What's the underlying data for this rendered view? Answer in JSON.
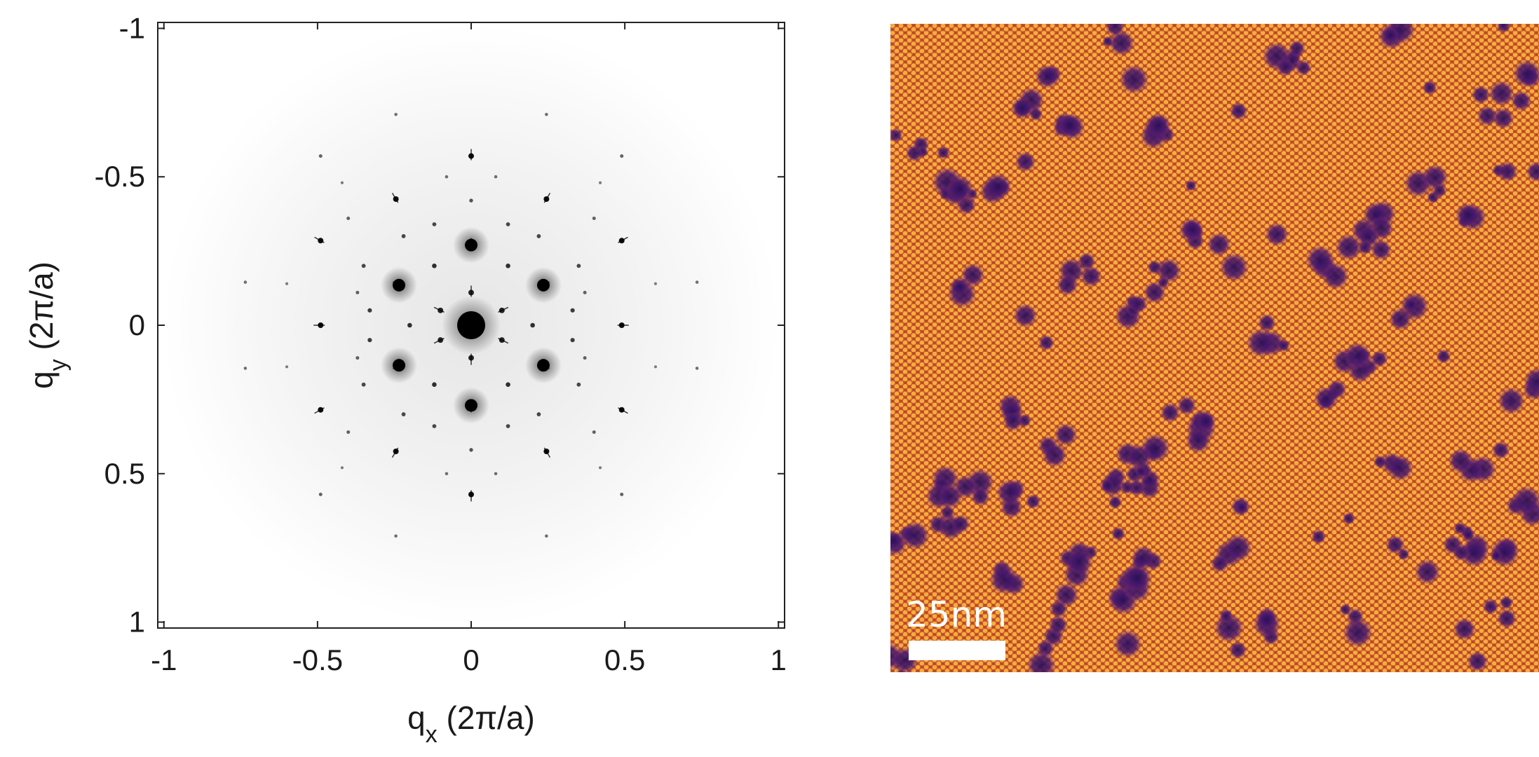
{
  "chart_data": [
    {
      "type": "scatter",
      "xlabel": "q_x (2π/a)",
      "ylabel": "q_y (2π/a)",
      "xlim": [
        -1.02,
        1.02
      ],
      "ylim": [
        -1.02,
        1.02
      ],
      "y_axis_inverted": true,
      "x_ticks": [
        -1,
        -0.5,
        0,
        0.5,
        1
      ],
      "x_tick_labels": [
        "-1",
        "-0.5",
        "0",
        "0.5",
        "1"
      ],
      "y_ticks": [
        -1,
        -0.5,
        0,
        0.5,
        1
      ],
      "y_tick_labels": [
        "-1",
        "-0.5",
        "0",
        "0.5",
        "1"
      ],
      "grid": false,
      "colormap": "grayscale (dark = high intensity)",
      "series": [
        {
          "points": [
            {
              "x": 0,
              "y": 0,
              "intensity": 1.0
            },
            {
              "x": 0,
              "y": -0.27,
              "intensity": 0.9
            },
            {
              "x": 0.235,
              "y": -0.135,
              "intensity": 0.9
            },
            {
              "x": 0.235,
              "y": 0.135,
              "intensity": 0.9
            },
            {
              "x": 0,
              "y": 0.27,
              "intensity": 0.9
            },
            {
              "x": -0.235,
              "y": 0.135,
              "intensity": 0.9
            },
            {
              "x": -0.235,
              "y": -0.135,
              "intensity": 0.9
            },
            {
              "x": 0,
              "y": -0.57,
              "intensity": 0.6
            },
            {
              "x": 0.49,
              "y": -0.285,
              "intensity": 0.6
            },
            {
              "x": 0.49,
              "y": 0.285,
              "intensity": 0.6
            },
            {
              "x": 0,
              "y": 0.57,
              "intensity": 0.6
            },
            {
              "x": -0.49,
              "y": 0.285,
              "intensity": 0.6
            },
            {
              "x": -0.49,
              "y": -0.285,
              "intensity": 0.6
            },
            {
              "x": 0.245,
              "y": -0.425,
              "intensity": 0.6
            },
            {
              "x": 0.49,
              "y": 0,
              "intensity": 0.6
            },
            {
              "x": 0.245,
              "y": 0.425,
              "intensity": 0.6
            },
            {
              "x": -0.245,
              "y": 0.425,
              "intensity": 0.6
            },
            {
              "x": -0.49,
              "y": 0,
              "intensity": 0.6
            },
            {
              "x": -0.245,
              "y": -0.425,
              "intensity": 0.6
            },
            {
              "x": -0.49,
              "y": -0.57,
              "intensity": 0.25
            },
            {
              "x": 0.49,
              "y": -0.57,
              "intensity": 0.25
            },
            {
              "x": -0.49,
              "y": 0.57,
              "intensity": 0.25
            },
            {
              "x": 0.49,
              "y": 0.57,
              "intensity": 0.25
            },
            {
              "x": -0.245,
              "y": -0.71,
              "intensity": 0.2
            },
            {
              "x": 0.245,
              "y": -0.71,
              "intensity": 0.2
            },
            {
              "x": -0.245,
              "y": 0.71,
              "intensity": 0.2
            },
            {
              "x": 0.245,
              "y": 0.71,
              "intensity": 0.2
            },
            {
              "x": -0.735,
              "y": -0.145,
              "intensity": 0.2
            },
            {
              "x": 0.735,
              "y": -0.145,
              "intensity": 0.2
            },
            {
              "x": -0.735,
              "y": 0.145,
              "intensity": 0.2
            },
            {
              "x": 0.735,
              "y": 0.145,
              "intensity": 0.2
            },
            {
              "x": -0.1,
              "y": -0.05,
              "intensity": 0.5
            },
            {
              "x": 0.1,
              "y": -0.05,
              "intensity": 0.5
            },
            {
              "x": -0.1,
              "y": 0.05,
              "intensity": 0.5
            },
            {
              "x": 0.1,
              "y": 0.05,
              "intensity": 0.5
            },
            {
              "x": 0,
              "y": -0.11,
              "intensity": 0.5
            },
            {
              "x": 0,
              "y": 0.11,
              "intensity": 0.5
            },
            {
              "x": -0.12,
              "y": -0.2,
              "intensity": 0.45
            },
            {
              "x": 0.12,
              "y": -0.2,
              "intensity": 0.45
            },
            {
              "x": -0.12,
              "y": 0.2,
              "intensity": 0.45
            },
            {
              "x": 0.12,
              "y": 0.2,
              "intensity": 0.45
            },
            {
              "x": -0.2,
              "y": 0,
              "intensity": 0.45
            },
            {
              "x": 0.2,
              "y": 0,
              "intensity": 0.45
            },
            {
              "x": -0.33,
              "y": -0.05,
              "intensity": 0.4
            },
            {
              "x": 0.33,
              "y": -0.05,
              "intensity": 0.4
            },
            {
              "x": -0.33,
              "y": 0.05,
              "intensity": 0.4
            },
            {
              "x": 0.33,
              "y": 0.05,
              "intensity": 0.4
            },
            {
              "x": -0.12,
              "y": -0.34,
              "intensity": 0.35
            },
            {
              "x": 0.12,
              "y": -0.34,
              "intensity": 0.35
            },
            {
              "x": -0.12,
              "y": 0.34,
              "intensity": 0.35
            },
            {
              "x": 0.12,
              "y": 0.34,
              "intensity": 0.35
            },
            {
              "x": -0.35,
              "y": -0.2,
              "intensity": 0.35
            },
            {
              "x": 0.35,
              "y": -0.2,
              "intensity": 0.35
            },
            {
              "x": -0.35,
              "y": 0.2,
              "intensity": 0.35
            },
            {
              "x": 0.35,
              "y": 0.2,
              "intensity": 0.35
            },
            {
              "x": -0.22,
              "y": -0.3,
              "intensity": 0.35
            },
            {
              "x": 0.22,
              "y": -0.3,
              "intensity": 0.35
            },
            {
              "x": -0.22,
              "y": 0.3,
              "intensity": 0.35
            },
            {
              "x": 0.22,
              "y": 0.3,
              "intensity": 0.35
            },
            {
              "x": -0.4,
              "y": -0.36,
              "intensity": 0.25
            },
            {
              "x": 0.4,
              "y": -0.36,
              "intensity": 0.25
            },
            {
              "x": -0.4,
              "y": 0.36,
              "intensity": 0.25
            },
            {
              "x": 0.4,
              "y": 0.36,
              "intensity": 0.25
            },
            {
              "x": 0,
              "y": -0.42,
              "intensity": 0.3
            },
            {
              "x": 0,
              "y": 0.42,
              "intensity": 0.3
            },
            {
              "x": -0.37,
              "y": 0.11,
              "intensity": 0.25
            },
            {
              "x": 0.37,
              "y": -0.11,
              "intensity": 0.25
            },
            {
              "x": -0.37,
              "y": -0.11,
              "intensity": 0.25
            },
            {
              "x": 0.37,
              "y": 0.11,
              "intensity": 0.25
            },
            {
              "x": -0.08,
              "y": -0.5,
              "intensity": 0.2
            },
            {
              "x": 0.08,
              "y": -0.5,
              "intensity": 0.2
            },
            {
              "x": -0.08,
              "y": 0.5,
              "intensity": 0.2
            },
            {
              "x": 0.08,
              "y": 0.5,
              "intensity": 0.2
            },
            {
              "x": -0.6,
              "y": -0.14,
              "intensity": 0.15
            },
            {
              "x": 0.6,
              "y": -0.14,
              "intensity": 0.15
            },
            {
              "x": -0.6,
              "y": 0.14,
              "intensity": 0.15
            },
            {
              "x": 0.6,
              "y": 0.14,
              "intensity": 0.15
            },
            {
              "x": -0.42,
              "y": -0.48,
              "intensity": 0.15
            },
            {
              "x": 0.42,
              "y": -0.48,
              "intensity": 0.15
            },
            {
              "x": -0.42,
              "y": 0.48,
              "intensity": 0.15
            },
            {
              "x": 0.42,
              "y": 0.48,
              "intensity": 0.15
            }
          ]
        }
      ]
    },
    {
      "type": "heatmap",
      "colormap": "inferno",
      "colors": {
        "high": "#f0a33a",
        "mid": "#d9672a",
        "low": "#2d1157"
      },
      "scale_bar_label": "25nm"
    }
  ]
}
